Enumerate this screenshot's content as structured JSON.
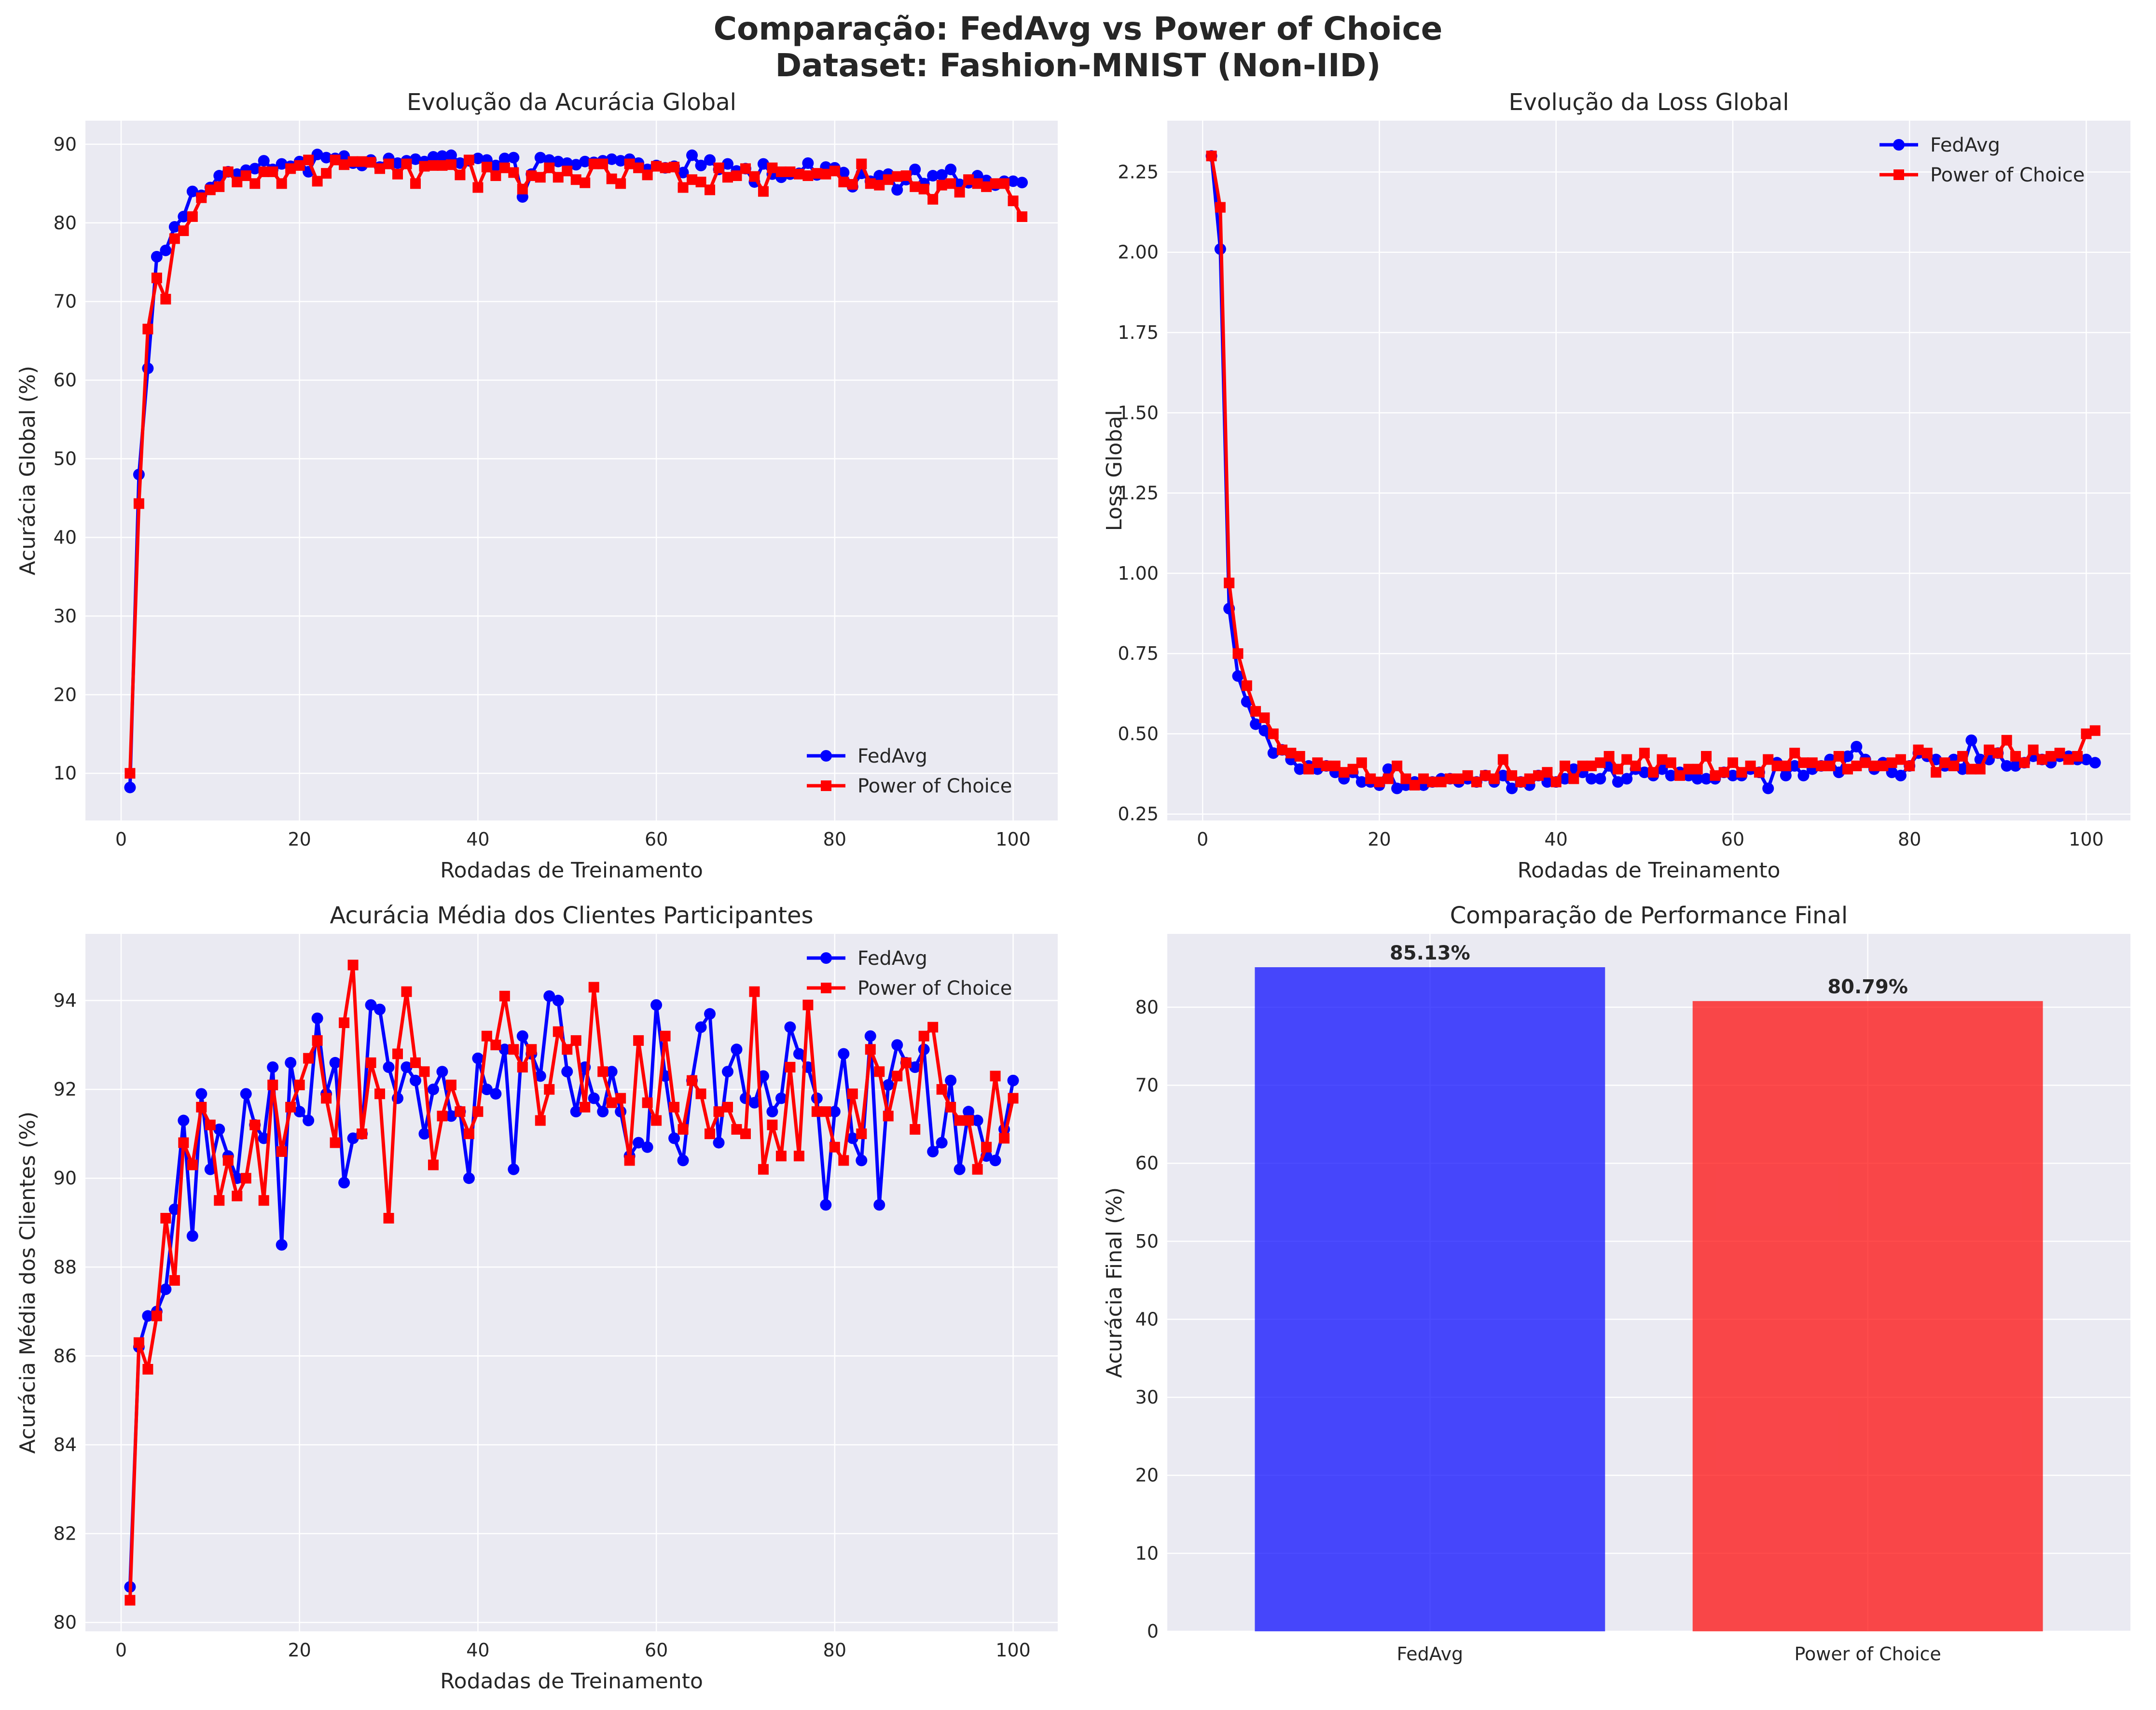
{
  "figure": {
    "title_line1": "Comparação: FedAvg vs Power of Choice",
    "title_line2": "Dataset: Fashion-MNIST (Non-IID)"
  },
  "colors": {
    "fedavg": "#0000ff",
    "poc": "#ff0000",
    "panel_bg": "#eaeaf2",
    "grid": "#ffffff"
  },
  "chart_data": [
    {
      "id": "global_accuracy",
      "type": "line",
      "title": "Evolução da Acurácia Global",
      "xlabel": "Rodadas de Treinamento",
      "ylabel": "Acurácia Global (%)",
      "xlim": [
        -4,
        105
      ],
      "ylim": [
        4,
        93
      ],
      "xticks": [
        0,
        20,
        40,
        60,
        80,
        100
      ],
      "yticks": [
        10,
        20,
        30,
        40,
        50,
        60,
        70,
        80,
        90
      ],
      "legend": "bottom-right",
      "grid": true,
      "x": [
        1,
        2,
        3,
        4,
        5,
        6,
        7,
        8,
        9,
        10,
        11,
        12,
        13,
        14,
        15,
        16,
        17,
        18,
        19,
        20,
        21,
        22,
        23,
        24,
        25,
        26,
        27,
        28,
        29,
        30,
        31,
        32,
        33,
        34,
        35,
        36,
        37,
        38,
        39,
        40,
        41,
        42,
        43,
        44,
        45,
        46,
        47,
        48,
        49,
        50,
        51,
        52,
        53,
        54,
        55,
        56,
        57,
        58,
        59,
        60,
        61,
        62,
        63,
        64,
        65,
        66,
        67,
        68,
        69,
        70,
        71,
        72,
        73,
        74,
        75,
        76,
        77,
        78,
        79,
        80,
        81,
        82,
        83,
        84,
        85,
        86,
        87,
        88,
        89,
        90,
        91,
        92,
        93,
        94,
        95,
        96,
        97,
        98,
        99,
        100,
        101
      ],
      "series": [
        {
          "name": "FedAvg",
          "color": "#0000ff",
          "marker": "circle",
          "values": [
            8.2,
            48.0,
            61.5,
            75.7,
            76.5,
            79.5,
            80.8,
            84.0,
            83.5,
            84.5,
            86.0,
            86.5,
            86.2,
            86.7,
            86.9,
            87.9,
            86.8,
            87.5,
            87.2,
            87.8,
            86.5,
            88.7,
            88.3,
            88.2,
            88.5,
            87.6,
            87.3,
            88.0,
            87.1,
            88.2,
            87.6,
            87.9,
            88.1,
            87.8,
            88.4,
            88.5,
            88.6,
            87.6,
            87.9,
            88.2,
            88.0,
            87.3,
            88.2,
            88.3,
            83.3,
            86.2,
            88.3,
            88.0,
            87.8,
            87.6,
            87.4,
            87.8,
            87.7,
            87.9,
            88.1,
            87.9,
            88.1,
            87.6,
            86.8,
            87.3,
            87.0,
            87.2,
            86.4,
            88.6,
            87.3,
            88.0,
            86.8,
            87.5,
            86.6,
            86.9,
            85.2,
            87.5,
            86.2,
            85.8,
            86.2,
            86.3,
            87.6,
            86.1,
            87.1,
            87.0,
            86.4,
            84.6,
            86.3,
            85.3,
            86.0,
            86.2,
            84.2,
            85.5,
            86.8,
            85.0,
            86.0,
            86.1,
            86.8,
            84.9,
            85.1,
            86.0,
            85.4,
            84.8,
            85.3,
            85.3,
            85.13
          ]
        },
        {
          "name": "Power of Choice",
          "color": "#ff0000",
          "marker": "square",
          "values": [
            10.0,
            44.3,
            66.5,
            73.0,
            70.3,
            78.0,
            79.0,
            80.8,
            83.2,
            84.2,
            84.6,
            86.5,
            85.2,
            86.0,
            85.0,
            86.5,
            86.5,
            85.0,
            86.9,
            87.3,
            88.0,
            85.3,
            86.3,
            88.0,
            87.4,
            87.8,
            87.8,
            87.7,
            86.9,
            87.5,
            86.2,
            87.5,
            85.0,
            87.2,
            87.3,
            87.3,
            87.4,
            86.1,
            88.0,
            84.5,
            87.1,
            86.0,
            87.0,
            86.4,
            84.3,
            86.0,
            85.8,
            87.0,
            85.8,
            86.6,
            85.5,
            85.1,
            87.5,
            87.5,
            85.6,
            85.0,
            87.5,
            87.0,
            86.1,
            87.2,
            87.0,
            87.1,
            84.5,
            85.5,
            85.2,
            84.2,
            87.0,
            85.8,
            86.0,
            86.9,
            85.9,
            84.0,
            87.0,
            86.5,
            86.5,
            86.2,
            86.0,
            86.3,
            86.2,
            86.6,
            85.2,
            84.9,
            87.5,
            85.0,
            84.8,
            85.5,
            85.9,
            86.0,
            84.6,
            84.3,
            83.0,
            84.8,
            85.0,
            83.9,
            85.5,
            85.0,
            84.6,
            85.0,
            85.0,
            82.8,
            80.79
          ]
        }
      ]
    },
    {
      "id": "global_loss",
      "type": "line",
      "title": "Evolução da Loss Global",
      "xlabel": "Rodadas de Treinamento",
      "ylabel": "Loss Global",
      "xlim": [
        -4,
        105
      ],
      "ylim": [
        0.23,
        2.41
      ],
      "xticks": [
        0,
        20,
        40,
        60,
        80,
        100
      ],
      "yticks": [
        0.25,
        0.5,
        0.75,
        1.0,
        1.25,
        1.5,
        1.75,
        2.0,
        2.25
      ],
      "ytick_labels": [
        "0.25",
        "0.50",
        "0.75",
        "1.00",
        "1.25",
        "1.50",
        "1.75",
        "2.00",
        "2.25"
      ],
      "legend": "top-right",
      "grid": true,
      "x": [
        1,
        2,
        3,
        4,
        5,
        6,
        7,
        8,
        9,
        10,
        11,
        12,
        13,
        14,
        15,
        16,
        17,
        18,
        19,
        20,
        21,
        22,
        23,
        24,
        25,
        26,
        27,
        28,
        29,
        30,
        31,
        32,
        33,
        34,
        35,
        36,
        37,
        38,
        39,
        40,
        41,
        42,
        43,
        44,
        45,
        46,
        47,
        48,
        49,
        50,
        51,
        52,
        53,
        54,
        55,
        56,
        57,
        58,
        59,
        60,
        61,
        62,
        63,
        64,
        65,
        66,
        67,
        68,
        69,
        70,
        71,
        72,
        73,
        74,
        75,
        76,
        77,
        78,
        79,
        80,
        81,
        82,
        83,
        84,
        85,
        86,
        87,
        88,
        89,
        90,
        91,
        92,
        93,
        94,
        95,
        96,
        97,
        98,
        99,
        100,
        101
      ],
      "series": [
        {
          "name": "FedAvg",
          "color": "#0000ff",
          "marker": "circle",
          "values": [
            2.3,
            2.01,
            0.89,
            0.68,
            0.6,
            0.53,
            0.51,
            0.44,
            0.45,
            0.42,
            0.39,
            0.4,
            0.39,
            0.4,
            0.38,
            0.36,
            0.38,
            0.35,
            0.35,
            0.34,
            0.39,
            0.33,
            0.34,
            0.35,
            0.34,
            0.35,
            0.36,
            0.36,
            0.35,
            0.36,
            0.35,
            0.37,
            0.35,
            0.37,
            0.33,
            0.35,
            0.34,
            0.37,
            0.35,
            0.35,
            0.36,
            0.39,
            0.38,
            0.36,
            0.36,
            0.4,
            0.35,
            0.36,
            0.39,
            0.38,
            0.37,
            0.39,
            0.37,
            0.38,
            0.37,
            0.36,
            0.36,
            0.36,
            0.38,
            0.37,
            0.37,
            0.39,
            0.38,
            0.33,
            0.41,
            0.37,
            0.4,
            0.37,
            0.39,
            0.4,
            0.42,
            0.38,
            0.43,
            0.46,
            0.42,
            0.39,
            0.41,
            0.38,
            0.37,
            0.4,
            0.44,
            0.43,
            0.42,
            0.4,
            0.42,
            0.39,
            0.48,
            0.42,
            0.42,
            0.44,
            0.4,
            0.4,
            0.41,
            0.43,
            0.42,
            0.41,
            0.43,
            0.43,
            0.42,
            0.42,
            0.41
          ]
        },
        {
          "name": "Power of Choice",
          "color": "#ff0000",
          "marker": "square",
          "values": [
            2.3,
            2.14,
            0.97,
            0.75,
            0.65,
            0.57,
            0.55,
            0.5,
            0.45,
            0.44,
            0.43,
            0.39,
            0.41,
            0.4,
            0.4,
            0.38,
            0.39,
            0.41,
            0.36,
            0.35,
            0.36,
            0.4,
            0.36,
            0.34,
            0.36,
            0.35,
            0.35,
            0.36,
            0.36,
            0.37,
            0.35,
            0.37,
            0.36,
            0.42,
            0.37,
            0.35,
            0.36,
            0.37,
            0.38,
            0.35,
            0.4,
            0.36,
            0.4,
            0.4,
            0.41,
            0.43,
            0.39,
            0.42,
            0.4,
            0.44,
            0.38,
            0.42,
            0.41,
            0.37,
            0.39,
            0.39,
            0.43,
            0.37,
            0.38,
            0.41,
            0.38,
            0.4,
            0.38,
            0.42,
            0.4,
            0.4,
            0.44,
            0.41,
            0.41,
            0.4,
            0.4,
            0.43,
            0.39,
            0.4,
            0.41,
            0.4,
            0.4,
            0.41,
            0.42,
            0.4,
            0.45,
            0.44,
            0.38,
            0.41,
            0.4,
            0.43,
            0.39,
            0.39,
            0.45,
            0.44,
            0.48,
            0.43,
            0.41,
            0.45,
            0.42,
            0.43,
            0.44,
            0.42,
            0.43,
            0.5,
            0.51
          ]
        }
      ]
    },
    {
      "id": "client_accuracy",
      "type": "line",
      "title": "Acurácia Média dos Clientes Participantes",
      "xlabel": "Rodadas de Treinamento",
      "ylabel": "Acurácia Média dos Clientes (%)",
      "xlim": [
        -4,
        105
      ],
      "ylim": [
        79.8,
        95.5
      ],
      "xticks": [
        0,
        20,
        40,
        60,
        80,
        100
      ],
      "yticks": [
        80,
        82,
        84,
        86,
        88,
        90,
        92,
        94
      ],
      "legend": "top-right",
      "grid": true,
      "x": [
        1,
        2,
        3,
        4,
        5,
        6,
        7,
        8,
        9,
        10,
        11,
        12,
        13,
        14,
        15,
        16,
        17,
        18,
        19,
        20,
        21,
        22,
        23,
        24,
        25,
        26,
        27,
        28,
        29,
        30,
        31,
        32,
        33,
        34,
        35,
        36,
        37,
        38,
        39,
        40,
        41,
        42,
        43,
        44,
        45,
        46,
        47,
        48,
        49,
        50,
        51,
        52,
        53,
        54,
        55,
        56,
        57,
        58,
        59,
        60,
        61,
        62,
        63,
        64,
        65,
        66,
        67,
        68,
        69,
        70,
        71,
        72,
        73,
        74,
        75,
        76,
        77,
        78,
        79,
        80,
        81,
        82,
        83,
        84,
        85,
        86,
        87,
        88,
        89,
        90,
        91,
        92,
        93,
        94,
        95,
        96,
        97,
        98,
        99,
        100
      ],
      "series": [
        {
          "name": "FedAvg",
          "color": "#0000ff",
          "marker": "circle",
          "values": [
            80.8,
            86.2,
            86.9,
            87.0,
            87.5,
            89.3,
            91.3,
            88.7,
            91.9,
            90.2,
            91.1,
            90.5,
            90.0,
            91.9,
            91.2,
            90.9,
            92.5,
            88.5,
            92.6,
            91.5,
            91.3,
            93.6,
            91.9,
            92.6,
            89.9,
            90.9,
            91.0,
            93.9,
            93.8,
            92.5,
            91.8,
            92.5,
            92.2,
            91.0,
            92.0,
            92.4,
            91.4,
            91.5,
            90.0,
            92.7,
            92.0,
            91.9,
            92.9,
            90.2,
            93.2,
            92.8,
            92.3,
            94.1,
            94.0,
            92.4,
            91.5,
            92.5,
            91.8,
            91.5,
            92.4,
            91.5,
            90.5,
            90.8,
            90.7,
            93.9,
            92.3,
            90.9,
            90.4,
            92.2,
            93.4,
            93.7,
            90.8,
            92.4,
            92.9,
            91.8,
            91.7,
            92.3,
            91.5,
            91.8,
            93.4,
            92.8,
            92.5,
            91.8,
            89.4,
            91.5,
            92.8,
            90.9,
            90.4,
            93.2,
            89.4,
            92.1,
            93.0,
            92.6,
            92.5,
            92.9,
            90.6,
            90.8,
            92.2,
            90.2,
            91.5,
            91.3,
            90.5,
            90.4,
            91.1,
            92.2
          ]
        },
        {
          "name": "Power of Choice",
          "color": "#ff0000",
          "marker": "square",
          "values": [
            80.5,
            86.3,
            85.7,
            86.9,
            89.1,
            87.7,
            90.8,
            90.3,
            91.6,
            91.2,
            89.5,
            90.4,
            89.6,
            90.0,
            91.2,
            89.5,
            92.1,
            90.6,
            91.6,
            92.1,
            92.7,
            93.1,
            91.8,
            90.8,
            93.5,
            94.8,
            91.0,
            92.6,
            91.9,
            89.1,
            92.8,
            94.2,
            92.6,
            92.4,
            90.3,
            91.4,
            92.1,
            91.5,
            91.0,
            91.5,
            93.2,
            93.0,
            94.1,
            92.9,
            92.5,
            92.9,
            91.3,
            92.0,
            93.3,
            92.9,
            93.1,
            91.6,
            94.3,
            92.4,
            91.7,
            91.8,
            90.4,
            93.1,
            91.7,
            91.3,
            93.2,
            91.6,
            91.1,
            92.2,
            91.9,
            91.0,
            91.5,
            91.6,
            91.1,
            91.0,
            94.2,
            90.2,
            91.2,
            90.5,
            92.5,
            90.5,
            93.9,
            91.5,
            91.5,
            90.7,
            90.4,
            91.9,
            91.0,
            92.9,
            92.4,
            91.4,
            92.3,
            92.6,
            91.1,
            93.2,
            93.4,
            92.0,
            91.6,
            91.3,
            91.3,
            90.2,
            90.7,
            92.3,
            90.9,
            91.8
          ]
        }
      ]
    },
    {
      "id": "final_comparison",
      "type": "bar",
      "title": "Comparação de Performance Final",
      "xlabel": "",
      "ylabel": "Acurácia Final (%)",
      "ylim": [
        0,
        89.4
      ],
      "yticks": [
        0,
        10,
        20,
        30,
        40,
        50,
        60,
        70,
        80
      ],
      "grid": true,
      "categories": [
        "FedAvg",
        "Power of Choice"
      ],
      "values": [
        85.13,
        80.79
      ],
      "value_labels": [
        "85.13%",
        "80.79%"
      ],
      "colors": [
        "#0000ff",
        "#ff0000"
      ],
      "alpha": 0.7
    }
  ]
}
